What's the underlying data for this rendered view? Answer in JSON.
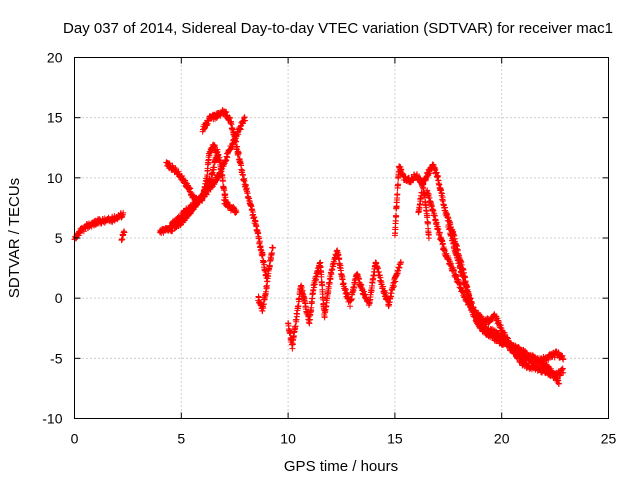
{
  "chart_data": {
    "type": "scatter",
    "title": "Day 037 of 2014, Sidereal Day-to-day VTEC variation (SDTVAR) for receiver mac1",
    "xlabel": "GPS time / hours",
    "ylabel": "SDTVAR / TECUs",
    "xlim": [
      0,
      25
    ],
    "ylim": [
      -10,
      20
    ],
    "xticks": [
      "0",
      "5",
      "10",
      "15",
      "20",
      "25"
    ],
    "yticks": [
      "-10",
      "-5",
      "0",
      "5",
      "10",
      "15",
      "20"
    ],
    "grid": true,
    "marker": "+",
    "color": "#ff0000",
    "series": [
      {
        "name": "mac1",
        "tracks": [
          {
            "points": [
              [
                0.0,
                4.8
              ],
              [
                0.3,
                5.6
              ],
              [
                0.7,
                6.1
              ],
              [
                1.2,
                6.4
              ],
              [
                1.7,
                6.5
              ],
              [
                2.3,
                7.0
              ]
            ]
          },
          {
            "points": [
              [
                2.2,
                5.0
              ],
              [
                2.35,
                5.5
              ]
            ]
          },
          {
            "points": [
              [
                4.0,
                5.5
              ],
              [
                4.4,
                5.8
              ],
              [
                4.8,
                6.5
              ],
              [
                5.3,
                7.4
              ],
              [
                5.8,
                8.1
              ],
              [
                6.3,
                9.0
              ],
              [
                6.8,
                10.4
              ],
              [
                7.3,
                12.5
              ],
              [
                7.8,
                14.3
              ],
              [
                8.0,
                15.0
              ]
            ]
          },
          {
            "points": [
              [
                4.5,
                5.7
              ],
              [
                5.0,
                6.3
              ],
              [
                5.5,
                7.3
              ],
              [
                6.0,
                8.5
              ],
              [
                6.4,
                10.0
              ],
              [
                6.6,
                11.5
              ],
              [
                6.7,
                12.5
              ]
            ]
          },
          {
            "points": [
              [
                4.3,
                11.2
              ],
              [
                4.8,
                10.5
              ],
              [
                5.3,
                9.3
              ],
              [
                5.6,
                8.3
              ],
              [
                5.8,
                8.0
              ],
              [
                6.0,
                8.3
              ],
              [
                6.2,
                10.0
              ],
              [
                6.3,
                12.0
              ],
              [
                6.5,
                12.8
              ],
              [
                6.8,
                11.5
              ],
              [
                7.0,
                9.0
              ],
              [
                7.1,
                8.0
              ]
            ]
          },
          {
            "points": [
              [
                6.0,
                14.0
              ],
              [
                6.3,
                14.9
              ],
              [
                6.7,
                15.2
              ],
              [
                7.0,
                15.5
              ],
              [
                7.3,
                14.8
              ],
              [
                7.5,
                13.3
              ],
              [
                7.7,
                11.7
              ],
              [
                7.9,
                10.0
              ],
              [
                8.2,
                8.0
              ],
              [
                8.5,
                6.0
              ],
              [
                8.8,
                3.5
              ],
              [
                9.0,
                1.5
              ]
            ]
          },
          {
            "points": [
              [
                7.0,
                8.0
              ],
              [
                7.3,
                7.5
              ],
              [
                7.6,
                7.2
              ]
            ]
          },
          {
            "points": [
              [
                8.6,
                0.0
              ],
              [
                8.8,
                -1.0
              ],
              [
                9.0,
                1.0
              ],
              [
                9.2,
                3.5
              ],
              [
                9.3,
                4.5
              ]
            ]
          },
          {
            "points": [
              [
                10.0,
                -2.0
              ],
              [
                10.2,
                -4.0
              ],
              [
                10.4,
                -1.5
              ],
              [
                10.6,
                1.0
              ],
              [
                10.8,
                -0.5
              ],
              [
                11.0,
                -2.0
              ],
              [
                11.2,
                1.0
              ],
              [
                11.5,
                3.0
              ],
              [
                11.7,
                -1.5
              ],
              [
                12.0,
                2.0
              ],
              [
                12.3,
                4.0
              ],
              [
                12.6,
                1.0
              ],
              [
                12.9,
                -0.5
              ],
              [
                13.2,
                2.0
              ],
              [
                13.5,
                0.5
              ],
              [
                13.8,
                -0.5
              ],
              [
                14.1,
                3.0
              ],
              [
                14.4,
                1.0
              ],
              [
                14.7,
                -0.5
              ],
              [
                15.0,
                1.5
              ],
              [
                15.3,
                3.0
              ]
            ]
          },
          {
            "points": [
              [
                15.0,
                5.0
              ],
              [
                15.1,
                8.5
              ],
              [
                15.2,
                11.0
              ],
              [
                15.4,
                10.0
              ],
              [
                15.7,
                9.8
              ],
              [
                16.0,
                10.2
              ],
              [
                16.3,
                9.5
              ],
              [
                16.5,
                7.0
              ],
              [
                16.6,
                5.0
              ]
            ]
          },
          {
            "points": [
              [
                16.1,
                7.0
              ],
              [
                16.3,
                9.5
              ],
              [
                16.6,
                10.5
              ],
              [
                16.8,
                11.0
              ],
              [
                17.0,
                10.0
              ],
              [
                17.2,
                8.5
              ],
              [
                17.4,
                7.0
              ],
              [
                17.7,
                5.5
              ],
              [
                18.0,
                3.5
              ],
              [
                18.3,
                1.5
              ],
              [
                18.6,
                -1.0
              ],
              [
                19.0,
                -2.5
              ],
              [
                19.4,
                -3.0
              ],
              [
                19.8,
                -3.5
              ],
              [
                20.2,
                -3.8
              ],
              [
                20.6,
                -4.5
              ],
              [
                21.0,
                -5.5
              ],
              [
                21.5,
                -5.8
              ],
              [
                22.0,
                -6.0
              ],
              [
                22.5,
                -6.5
              ],
              [
                22.9,
                -6.0
              ]
            ]
          },
          {
            "points": [
              [
                16.5,
                9.0
              ],
              [
                16.9,
                6.5
              ],
              [
                17.3,
                4.0
              ],
              [
                17.8,
                2.0
              ],
              [
                18.3,
                0.0
              ],
              [
                18.8,
                -1.5
              ],
              [
                19.3,
                -2.5
              ],
              [
                19.8,
                -3.0
              ],
              [
                20.3,
                -3.8
              ],
              [
                20.8,
                -4.3
              ],
              [
                21.3,
                -4.8
              ],
              [
                21.8,
                -5.3
              ],
              [
                22.3,
                -6.0
              ],
              [
                22.7,
                -7.0
              ]
            ]
          },
          {
            "points": [
              [
                17.5,
                6.0
              ],
              [
                17.9,
                3.5
              ],
              [
                18.3,
                1.0
              ],
              [
                18.7,
                -1.0
              ],
              [
                19.2,
                -2.0
              ],
              [
                19.7,
                -1.5
              ],
              [
                20.1,
                -3.0
              ],
              [
                20.6,
                -4.5
              ],
              [
                21.1,
                -5.0
              ],
              [
                21.6,
                -5.2
              ],
              [
                22.1,
                -5.0
              ],
              [
                22.6,
                -4.6
              ],
              [
                22.9,
                -5.0
              ]
            ]
          }
        ]
      }
    ]
  }
}
